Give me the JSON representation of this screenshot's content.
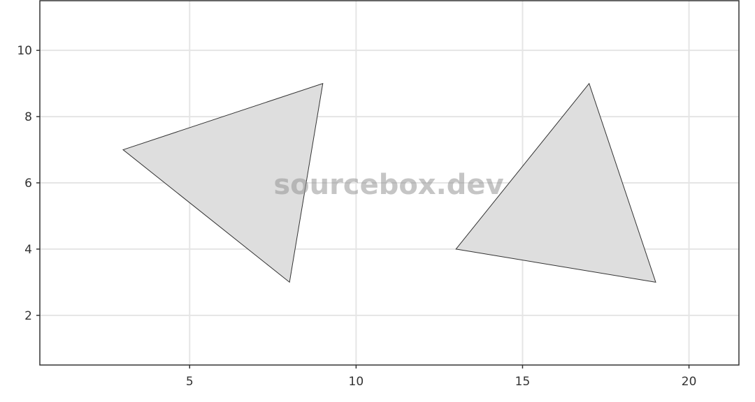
{
  "chart_data": {
    "type": "scatter",
    "title": "",
    "xlabel": "",
    "ylabel": "",
    "xlim": [
      0.5,
      21.5
    ],
    "ylim": [
      0.5,
      11.5
    ],
    "x_ticks": [
      5,
      10,
      15,
      20
    ],
    "y_ticks": [
      2,
      4,
      6,
      8,
      10
    ],
    "x_tick_labels": [
      "5",
      "10",
      "15",
      "20"
    ],
    "y_tick_labels": [
      "2",
      "4",
      "6",
      "8",
      "10"
    ],
    "grid": true,
    "legend": "none",
    "fill_color": "#dedede",
    "stroke_color": "#333333",
    "series": [
      {
        "values": [
          [
            3,
            7
          ],
          [
            9,
            9
          ],
          [
            8,
            3
          ]
        ]
      },
      {
        "values": [
          [
            13,
            4
          ],
          [
            17,
            9
          ],
          [
            19,
            3
          ]
        ]
      }
    ]
  },
  "watermark": "sourcebox.dev"
}
